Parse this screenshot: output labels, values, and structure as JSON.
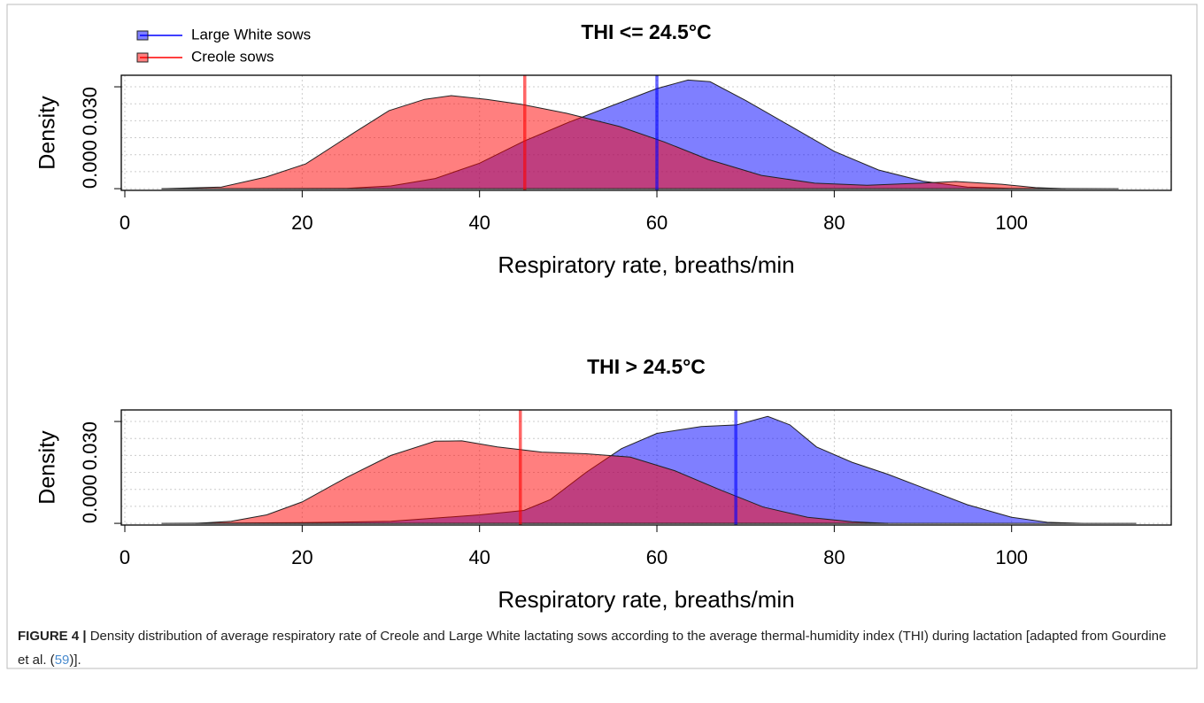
{
  "chart_data": [
    {
      "type": "density",
      "title": "THI <= 24.5°C",
      "xlabel": "Respiratory rate, breaths/min",
      "ylabel": "Density",
      "xlim": [
        -0.4,
        118
      ],
      "ylim": [
        -0.0005,
        0.0334
      ],
      "xticks": [
        0,
        20,
        40,
        60,
        80,
        100
      ],
      "yticks": [
        {
          "value": 0,
          "label": "0.000"
        },
        {
          "value": 0.03,
          "label": "0.030"
        }
      ],
      "minor_grid_y": [
        0.005,
        0.01,
        0.015,
        0.02,
        0.025
      ],
      "grid": true,
      "legend": "top-left",
      "series": [
        {
          "name": "Large White sows",
          "color": "#0000ff",
          "x": [
            4.2,
            25,
            30,
            35,
            40,
            45,
            50,
            55,
            60,
            63.5,
            66,
            70,
            75,
            80,
            85,
            90,
            95,
            100,
            112
          ],
          "values": [
            0,
            0.0001,
            0.0008,
            0.003,
            0.0075,
            0.014,
            0.0195,
            0.0245,
            0.0295,
            0.032,
            0.0315,
            0.026,
            0.0185,
            0.011,
            0.0055,
            0.0022,
            0.0005,
            0.0001,
            0
          ],
          "mean": 60.0
        },
        {
          "name": "Creole sows",
          "color": "#ff0000",
          "x": [
            4.2,
            10.9,
            15.9,
            20.4,
            25.8,
            29.8,
            33.8,
            36.8,
            40.8,
            44.8,
            49.8,
            55.8,
            60.8,
            65.8,
            71.8,
            77.8,
            83.7,
            89.7,
            93.7,
            98.9,
            102.7,
            106
          ],
          "values": [
            0,
            0.0005,
            0.0034,
            0.0073,
            0.0164,
            0.023,
            0.0263,
            0.0274,
            0.0263,
            0.0248,
            0.0222,
            0.0183,
            0.0138,
            0.0086,
            0.0039,
            0.0016,
            0.001,
            0.0016,
            0.0021,
            0.0013,
            0.0003,
            0
          ],
          "mean": 45.1
        }
      ]
    },
    {
      "type": "density",
      "title": "THI > 24.5°C",
      "xlabel": "Respiratory rate, breaths/min",
      "ylabel": "Density",
      "xlim": [
        -0.4,
        118
      ],
      "ylim": [
        -0.0005,
        0.0334
      ],
      "xticks": [
        0,
        20,
        40,
        60,
        80,
        100
      ],
      "yticks": [
        {
          "value": 0,
          "label": "0.000"
        },
        {
          "value": 0.03,
          "label": "0.030"
        }
      ],
      "minor_grid_y": [
        0.005,
        0.01,
        0.015,
        0.02,
        0.025
      ],
      "grid": true,
      "series": [
        {
          "color": "#0000ff",
          "x": [
            4.2,
            20,
            30,
            40,
            45,
            48,
            52,
            56,
            60,
            65,
            69,
            72.5,
            75,
            78,
            82,
            86,
            90,
            95,
            100,
            104,
            108,
            114
          ],
          "values": [
            0,
            0.0002,
            0.0006,
            0.0025,
            0.0038,
            0.007,
            0.015,
            0.022,
            0.0265,
            0.0285,
            0.029,
            0.0315,
            0.029,
            0.0225,
            0.018,
            0.0145,
            0.0105,
            0.0055,
            0.0018,
            0.0003,
            0,
            0
          ],
          "mean": 68.9
        },
        {
          "color": "#ff0000",
          "x": [
            8,
            12,
            16,
            20,
            25,
            30,
            35,
            38,
            42,
            47,
            52,
            57,
            62,
            67,
            72,
            77,
            82,
            86
          ],
          "values": [
            0,
            0.0006,
            0.0025,
            0.0063,
            0.0135,
            0.02,
            0.0242,
            0.0243,
            0.0225,
            0.021,
            0.0205,
            0.0195,
            0.0155,
            0.01,
            0.0048,
            0.0018,
            0.0005,
            0
          ],
          "mean": 44.6
        }
      ]
    }
  ],
  "caption": {
    "label": "FIGURE 4 |",
    "text": "Density distribution of average respiratory rate of Creole and Large White lactating sows according to the average thermal-humidity index (THI) during lactation [adapted from Gourdine et al. (",
    "ref": "59",
    "end": ")]."
  }
}
